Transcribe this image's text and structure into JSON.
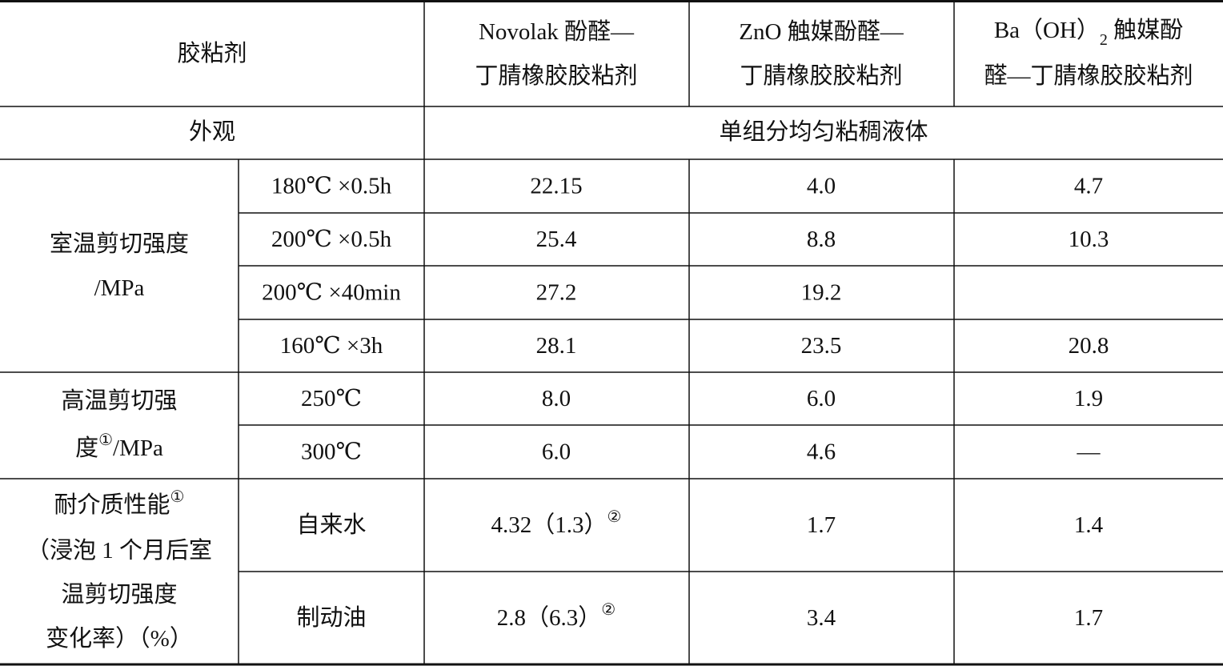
{
  "table": {
    "header": {
      "adhesive": "胶粘剂",
      "col1": [
        "Novolak 酚醛—",
        "丁腈橡胶胶粘剂"
      ],
      "col2": [
        "ZnO 触媒酚醛—",
        "丁腈橡胶胶粘剂"
      ],
      "col3": {
        "line1": "Ba（OH）",
        "sub": "2",
        "line1_after": " 触媒酚",
        "line2": "醛—丁腈橡胶胶粘剂"
      }
    },
    "appearance": {
      "label": "外观",
      "value": "单组分均匀粘稠液体"
    },
    "room_temp": {
      "label": [
        "室温剪切强度",
        "/MPa"
      ],
      "rows": [
        {
          "condition": "180℃ ×0.5h",
          "values": [
            "22.15",
            "4.0",
            "4.7"
          ]
        },
        {
          "condition": "200℃ ×0.5h",
          "values": [
            "25.4",
            "8.8",
            "10.3"
          ]
        },
        {
          "condition": "200℃ ×40min",
          "values": [
            "27.2",
            "19.2",
            null
          ]
        },
        {
          "condition": "160℃ ×3h",
          "values": [
            "28.1",
            "23.5",
            "20.8"
          ]
        }
      ]
    },
    "high_temp": {
      "label": {
        "line1": "高温剪切强",
        "line2": "度",
        "sup": "①",
        "line2_after": "/MPa"
      },
      "rows": [
        {
          "condition": "250℃",
          "values": [
            "8.0",
            "6.0",
            "1.9"
          ]
        },
        {
          "condition": "300℃",
          "values": [
            "6.0",
            "4.6",
            "—"
          ]
        }
      ]
    },
    "medium": {
      "label": {
        "line1": "耐介质性能",
        "sup": "①",
        "lines": [
          "（浸泡 1 个月后室",
          "温剪切强度",
          "变化率）（%）"
        ]
      },
      "rows": [
        {
          "condition": "自来水",
          "values": [
            {
              "text": "4.32（1.3）",
              "sup": "②"
            },
            "1.7",
            "1.4"
          ]
        },
        {
          "condition": "制动油",
          "values": [
            {
              "text": "2.8（6.3）",
              "sup": "②"
            },
            "3.4",
            "1.7"
          ]
        }
      ]
    }
  }
}
